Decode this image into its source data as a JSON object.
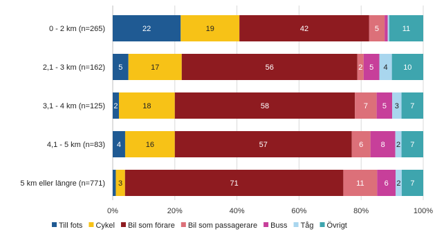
{
  "chart_data": {
    "type": "bar",
    "orientation": "horizontal",
    "stacked": true,
    "percent_scale": true,
    "title": "",
    "xlabel": "",
    "ylabel": "",
    "xlim": [
      0,
      100
    ],
    "x_ticks": [
      "0%",
      "20%",
      "40%",
      "60%",
      "80%",
      "100%"
    ],
    "grid": true,
    "legend_position": "bottom",
    "categories": [
      "0 - 2 km (n=265)",
      "2,1 - 3 km (n=162)",
      "3,1 - 4 km (n=125)",
      "4,1 - 5 km (n=83)",
      "5 km eller längre (n=771)"
    ],
    "series": [
      {
        "name": "Till fots",
        "color": "#1F5A93",
        "values": [
          22,
          5,
          2,
          4,
          1
        ],
        "labels": [
          "22",
          "5",
          "2",
          "4",
          ""
        ]
      },
      {
        "name": "Cykel",
        "color": "#F7C217",
        "values": [
          19,
          17,
          18,
          16,
          3
        ],
        "labels": [
          "19",
          "17",
          "18",
          "16",
          "3"
        ]
      },
      {
        "name": "Bil som förare",
        "color": "#8E1B20",
        "values": [
          42,
          56,
          58,
          57,
          71
        ],
        "labels": [
          "42",
          "56",
          "58",
          "57",
          "71"
        ]
      },
      {
        "name": "Bil som passagerare",
        "color": "#DC7079",
        "values": [
          5,
          2,
          7,
          6,
          11
        ],
        "labels": [
          "5",
          "2",
          "7",
          "6",
          "11"
        ]
      },
      {
        "name": "Buss",
        "color": "#C73F9A",
        "values": [
          1,
          5,
          5,
          8,
          6
        ],
        "labels": [
          "",
          "5",
          "5",
          "8",
          "6"
        ]
      },
      {
        "name": "Tåg",
        "color": "#A9D6EE",
        "values": [
          0.5,
          4,
          3,
          2,
          2
        ],
        "labels": [
          "",
          "4",
          "3",
          "2",
          "2"
        ]
      },
      {
        "name": "Övrigt",
        "color": "#3EA5AE",
        "values": [
          11,
          10,
          7,
          7,
          7
        ],
        "labels": [
          "11",
          "10",
          "7",
          "7",
          "7"
        ]
      }
    ]
  }
}
